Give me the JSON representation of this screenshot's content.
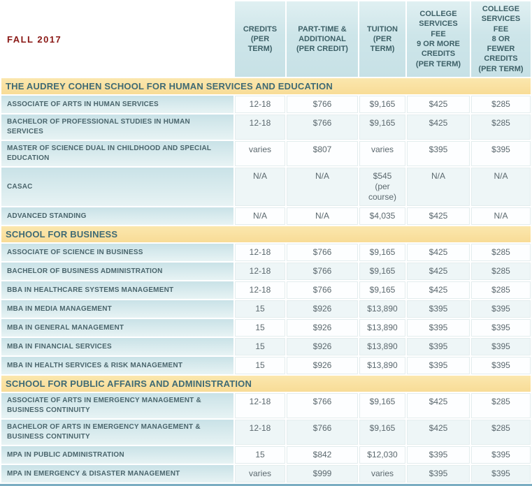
{
  "page": {
    "term": "FALL 2017",
    "colors": {
      "term_text": "#8a1815",
      "section_background": "#f8dd9b",
      "section_text": "#3f6a74",
      "column_header_background": "#cde5e9",
      "column_header_text": "#3d6067",
      "row_label_background": "#cfe5e9",
      "row_label_text": "#4a656c",
      "value_text": "#5b686e",
      "stripe_background": "#eef6f7",
      "bottom_border": "#7badc2"
    }
  },
  "table": {
    "columns": [
      "CREDITS\n(PER\nTERM)",
      "PART-TIME &\nADDITIONAL\n(PER CREDIT)",
      "TUITION\n(PER\nTERM)",
      "COLLEGE\nSERVICES\nFEE\n9 OR MORE\nCREDITS\n(PER TERM)",
      "COLLEGE\nSERVICES\nFEE\n8 OR\nFEWER\nCREDITS\n(PER TERM)"
    ],
    "sections": [
      {
        "name": "THE AUDREY COHEN SCHOOL FOR HUMAN SERVICES AND EDUCATION",
        "rows": [
          {
            "program": "ASSOCIATE OF ARTS IN HUMAN SERVICES",
            "values": [
              "12-18",
              "$766",
              "$9,165",
              "$425",
              "$285"
            ]
          },
          {
            "program": "BACHELOR OF PROFESSIONAL STUDIES IN HUMAN SERVICES",
            "values": [
              "12-18",
              "$766",
              "$9,165",
              "$425",
              "$285"
            ]
          },
          {
            "program": "MASTER OF SCIENCE DUAL IN CHILDHOOD AND SPECIAL\nEDUCATION",
            "values": [
              "varies",
              "$807",
              "varies",
              "$395",
              "$395"
            ]
          },
          {
            "program": "CASAC",
            "values": [
              "N/A",
              "N/A",
              "$545\n(per\ncourse)",
              "N/A",
              "N/A"
            ]
          },
          {
            "program": "ADVANCED STANDING",
            "values": [
              "N/A",
              "N/A",
              "$4,035",
              "$425",
              "N/A"
            ]
          }
        ]
      },
      {
        "name": "SCHOOL FOR BUSINESS",
        "rows": [
          {
            "program": "ASSOCIATE OF SCIENCE IN BUSINESS",
            "values": [
              "12-18",
              "$766",
              "$9,165",
              "$425",
              "$285"
            ]
          },
          {
            "program": "BACHELOR OF BUSINESS ADMINISTRATION",
            "values": [
              "12-18",
              "$766",
              "$9,165",
              "$425",
              "$285"
            ]
          },
          {
            "program": "BBA IN HEALTHCARE SYSTEMS MANAGEMENT",
            "values": [
              "12-18",
              "$766",
              "$9,165",
              "$425",
              "$285"
            ]
          },
          {
            "program": "MBA IN MEDIA MANAGEMENT",
            "values": [
              "15",
              "$926",
              "$13,890",
              "$395",
              "$395"
            ]
          },
          {
            "program": "MBA IN GENERAL MANAGEMENT",
            "values": [
              "15",
              "$926",
              "$13,890",
              "$395",
              "$395"
            ]
          },
          {
            "program": "MBA IN FINANCIAL SERVICES",
            "values": [
              "15",
              "$926",
              "$13,890",
              "$395",
              "$395"
            ]
          },
          {
            "program": "MBA IN HEALTH SERVICES & RISK MANAGEMENT",
            "values": [
              "15",
              "$926",
              "$13,890",
              "$395",
              "$395"
            ]
          }
        ]
      },
      {
        "name": "SCHOOL FOR PUBLIC AFFAIRS AND ADMINISTRATION",
        "rows": [
          {
            "program": "ASSOCIATE OF ARTS IN EMERGENCY MANAGEMENT &\nBUSINESS CONTINUITY",
            "values": [
              "12-18",
              "$766",
              "$9,165",
              "$425",
              "$285"
            ]
          },
          {
            "program": "BACHELOR OF ARTS IN EMERGENCY MANAGEMENT &\nBUSINESS CONTINUITY",
            "values": [
              "12-18",
              "$766",
              "$9,165",
              "$425",
              "$285"
            ]
          },
          {
            "program": "MPA IN PUBLIC ADMINISTRATION",
            "values": [
              "15",
              "$842",
              "$12,030",
              "$395",
              "$395"
            ]
          },
          {
            "program": "MPA IN EMERGENCY & DISASTER MANAGEMENT",
            "values": [
              "varies",
              "$999",
              "varies",
              "$395",
              "$395"
            ]
          }
        ]
      }
    ]
  }
}
